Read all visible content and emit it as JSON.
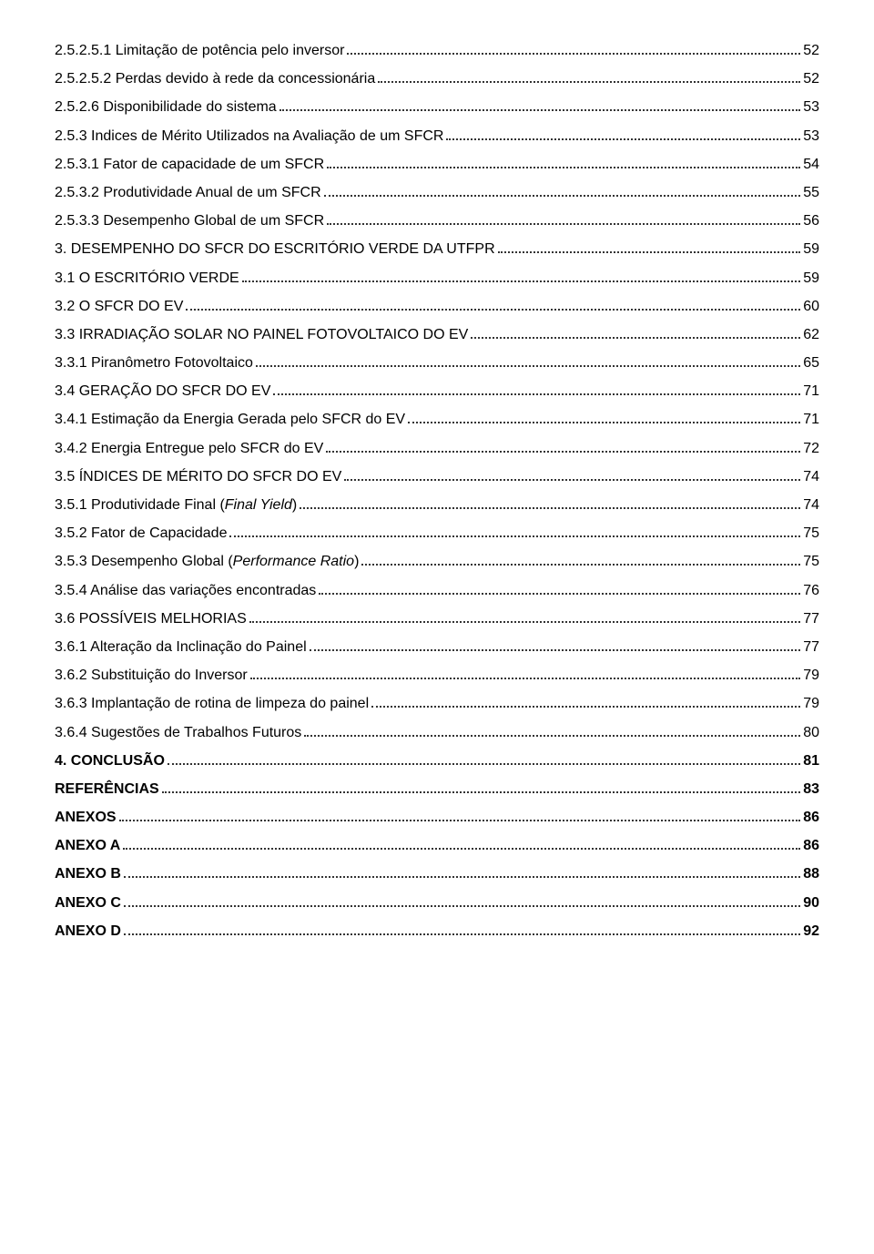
{
  "toc": [
    {
      "title": "2.5.2.5.1 Limitação de potência pelo inversor",
      "page": "52",
      "bold": false
    },
    {
      "title": "2.5.2.5.2 Perdas devido à rede da concessionária",
      "page": "52",
      "bold": false
    },
    {
      "title": "2.5.2.6 Disponibilidade do sistema",
      "page": "53",
      "bold": false
    },
    {
      "title": "2.5.3 Indices de Mérito Utilizados na Avaliação de um SFCR",
      "page": "53",
      "bold": false
    },
    {
      "title": "2.5.3.1 Fator de capacidade de um SFCR",
      "page": "54",
      "bold": false
    },
    {
      "title": "2.5.3.2 Produtividade Anual de um SFCR",
      "page": "55",
      "bold": false
    },
    {
      "title": "2.5.3.3 Desempenho Global de um SFCR",
      "page": "56",
      "bold": false
    },
    {
      "title": "3. DESEMPENHO DO SFCR DO ESCRITÓRIO VERDE DA UTFPR",
      "page": "59",
      "bold": false
    },
    {
      "title": "3.1 O ESCRITÓRIO VERDE",
      "page": "59",
      "bold": false
    },
    {
      "title": "3.2 O SFCR DO EV",
      "page": "60",
      "bold": false
    },
    {
      "title": "3.3 IRRADIAÇÃO SOLAR NO PAINEL FOTOVOLTAICO DO EV",
      "page": "62",
      "bold": false
    },
    {
      "title": "3.3.1 Piranômetro Fotovoltaico",
      "page": "65",
      "bold": false
    },
    {
      "title": "3.4 GERAÇÃO DO SFCR DO EV",
      "page": "71",
      "bold": false
    },
    {
      "title": "3.4.1 Estimação da Energia Gerada pelo SFCR do EV",
      "page": "71",
      "bold": false
    },
    {
      "title": "3.4.2 Energia Entregue pelo SFCR do EV",
      "page": "72",
      "bold": false
    },
    {
      "title": "3.5 ÍNDICES DE MÉRITO DO SFCR DO EV",
      "page": "74",
      "bold": false
    },
    {
      "title": "3.5.1 Produtividade Final (",
      "italic_part": "Final Yield",
      "close": ")",
      "page": "74",
      "bold": false
    },
    {
      "title": "3.5.2 Fator de Capacidade",
      "page": "75",
      "bold": false
    },
    {
      "title": "3.5.3 Desempenho Global (",
      "italic_part": "Performance Ratio",
      "close": ")",
      "page": "75",
      "bold": false
    },
    {
      "title": "3.5.4 Análise das variações encontradas",
      "page": "76",
      "bold": false
    },
    {
      "title": "3.6 POSSÍVEIS MELHORIAS",
      "page": "77",
      "bold": false
    },
    {
      "title": "3.6.1 Alteração da Inclinação do Painel",
      "page": "77",
      "bold": false
    },
    {
      "title": "3.6.2 Substituição do Inversor",
      "page": "79",
      "bold": false
    },
    {
      "title": "3.6.3 Implantação de rotina de limpeza do painel",
      "page": "79",
      "bold": false
    },
    {
      "title": "3.6.4 Sugestões de Trabalhos Futuros",
      "page": "80",
      "bold": false
    },
    {
      "title": "4. CONCLUSÃO",
      "page": "81",
      "bold": true
    },
    {
      "title": "REFERÊNCIAS",
      "page": "83",
      "bold": true
    },
    {
      "title": "ANEXOS",
      "page": "86",
      "bold": true
    },
    {
      "title": "ANEXO A",
      "page": "86",
      "bold": true
    },
    {
      "title": "ANEXO B",
      "page": "88",
      "bold": true
    },
    {
      "title": "ANEXO C",
      "page": "90",
      "bold": true
    },
    {
      "title": "ANEXO D",
      "page": "92",
      "bold": true
    }
  ]
}
